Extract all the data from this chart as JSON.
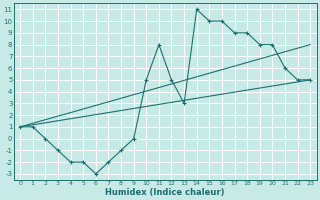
{
  "xlabel": "Humidex (Indice chaleur)",
  "xlim": [
    -0.5,
    23.5
  ],
  "ylim": [
    -3.5,
    11.5
  ],
  "xticks": [
    0,
    1,
    2,
    3,
    4,
    5,
    6,
    7,
    8,
    9,
    10,
    11,
    12,
    13,
    14,
    15,
    16,
    17,
    18,
    19,
    20,
    21,
    22,
    23
  ],
  "yticks": [
    -3,
    -2,
    -1,
    0,
    1,
    2,
    3,
    4,
    5,
    6,
    7,
    8,
    9,
    10,
    11
  ],
  "bg_color": "#c8eae6",
  "grid_color": "#b0d8d4",
  "line_color": "#1a7070",
  "line1_x": [
    0,
    1,
    2,
    3,
    4,
    5,
    6,
    7,
    8,
    9,
    10,
    11,
    12,
    13,
    14,
    15,
    16,
    17,
    18,
    19,
    20,
    21,
    22,
    23
  ],
  "line1_y": [
    1,
    1,
    0,
    -1,
    -2,
    -2,
    -3,
    -2,
    -1,
    0,
    5,
    8,
    5,
    3,
    11,
    10,
    10,
    9,
    9,
    8,
    8,
    6,
    5,
    5
  ],
  "line2_x": [
    0,
    23
  ],
  "line2_y": [
    1,
    5
  ],
  "line3_x": [
    0,
    23
  ],
  "line3_y": [
    1,
    8
  ]
}
